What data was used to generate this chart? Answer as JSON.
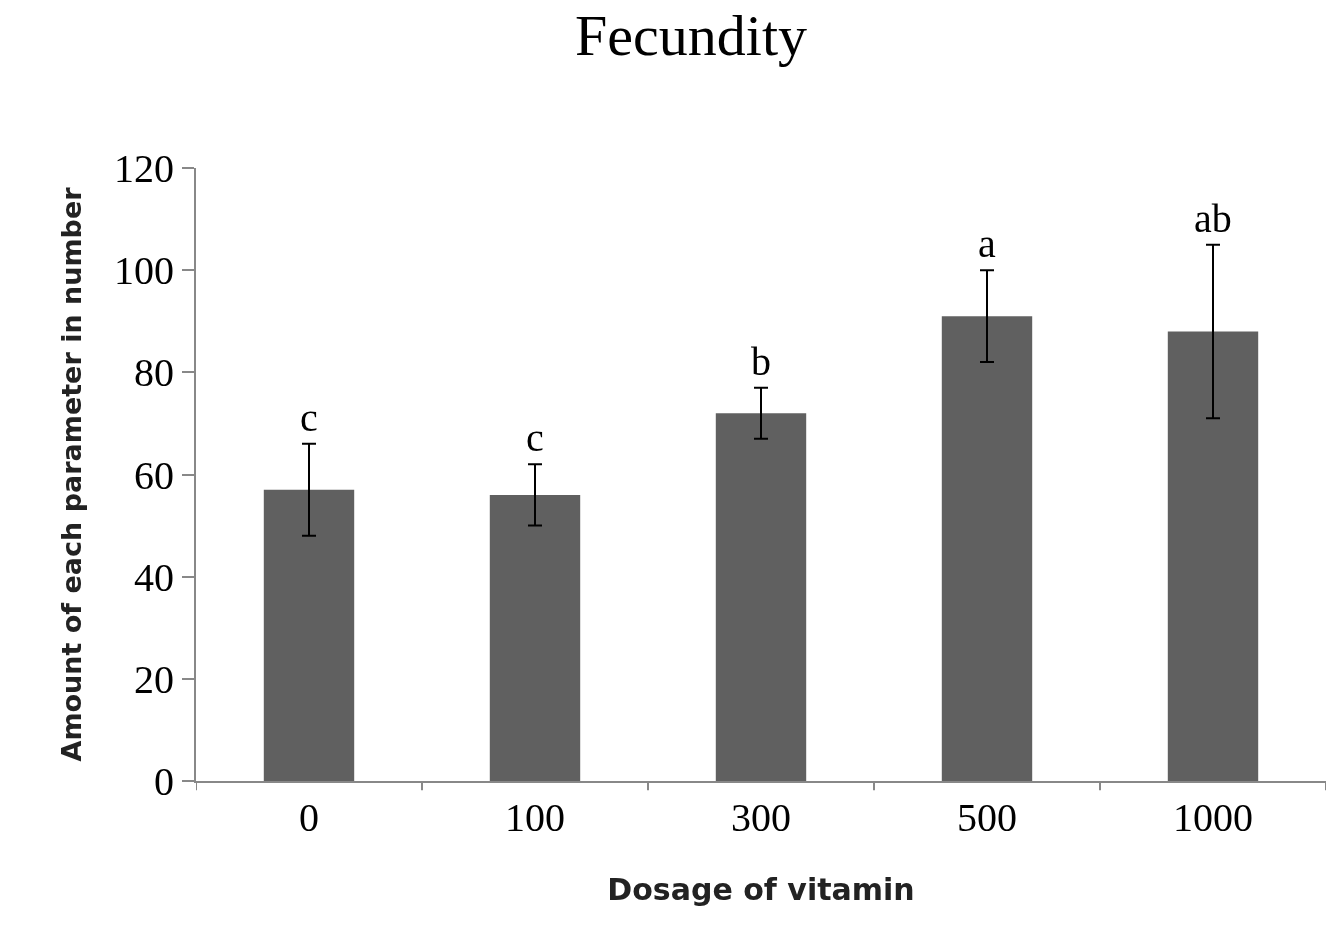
{
  "chart_data": {
    "type": "bar",
    "title": "Fecundity",
    "xlabel": "Dosage of vitamin",
    "ylabel": "Amount of each parameter in number",
    "categories": [
      "0",
      "100",
      "300",
      "500",
      "1000"
    ],
    "values": [
      57,
      56,
      72,
      91,
      88
    ],
    "errors": [
      [
        48,
        66
      ],
      [
        50,
        62
      ],
      [
        67,
        77
      ],
      [
        82,
        100
      ],
      [
        71,
        105
      ]
    ],
    "color": "#606060",
    "ylim": [
      0,
      120
    ],
    "yticks": [
      0,
      20,
      40,
      60,
      80,
      100,
      120
    ],
    "grid": false,
    "legend": false,
    "annotations": [
      {
        "text": "c",
        "x": "0",
        "y": 66
      },
      {
        "text": "c",
        "x": "100",
        "y": 62
      },
      {
        "text": "b",
        "x": "300",
        "y": 77
      },
      {
        "text": "a",
        "x": "500",
        "y": 100
      },
      {
        "text": "ab",
        "x": "1000",
        "y": 105
      }
    ]
  }
}
